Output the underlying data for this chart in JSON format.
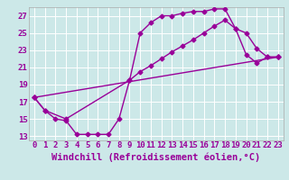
{
  "background_color": "#cce8e8",
  "grid_color": "#ffffff",
  "line_color": "#990099",
  "marker_color": "#990099",
  "xlabel": "Windchill (Refroidissement éolien,°C)",
  "xlim": [
    -0.5,
    23.5
  ],
  "ylim": [
    12.5,
    28
  ],
  "yticks": [
    13,
    15,
    17,
    19,
    21,
    23,
    25,
    27
  ],
  "xticks": [
    0,
    1,
    2,
    3,
    4,
    5,
    6,
    7,
    8,
    9,
    10,
    11,
    12,
    13,
    14,
    15,
    16,
    17,
    18,
    19,
    20,
    21,
    22,
    23
  ],
  "line1_x": [
    0,
    1,
    2,
    3,
    4,
    5,
    6,
    7,
    8,
    9,
    10,
    11,
    12,
    13,
    14,
    15,
    16,
    17,
    18,
    19,
    20,
    21,
    22,
    23
  ],
  "line1_y": [
    17.5,
    16.0,
    15.0,
    14.8,
    13.2,
    13.2,
    13.2,
    13.2,
    15.0,
    19.5,
    25.0,
    26.2,
    27.0,
    27.0,
    27.3,
    27.5,
    27.5,
    27.8,
    27.8,
    25.5,
    25.0,
    23.2,
    22.2,
    22.2
  ],
  "line2_x": [
    0,
    1,
    3,
    9,
    10,
    11,
    12,
    13,
    14,
    15,
    16,
    17,
    18,
    19,
    20,
    21,
    22,
    23
  ],
  "line2_y": [
    17.5,
    16.0,
    15.0,
    19.5,
    20.5,
    21.2,
    22.0,
    22.8,
    23.5,
    24.2,
    25.0,
    25.8,
    26.5,
    25.5,
    22.5,
    21.5,
    22.2,
    22.2
  ],
  "line3_x": [
    0,
    23
  ],
  "line3_y": [
    17.5,
    22.2
  ],
  "font_color": "#990099",
  "tick_fontsize": 6.5,
  "label_fontsize": 7.5
}
